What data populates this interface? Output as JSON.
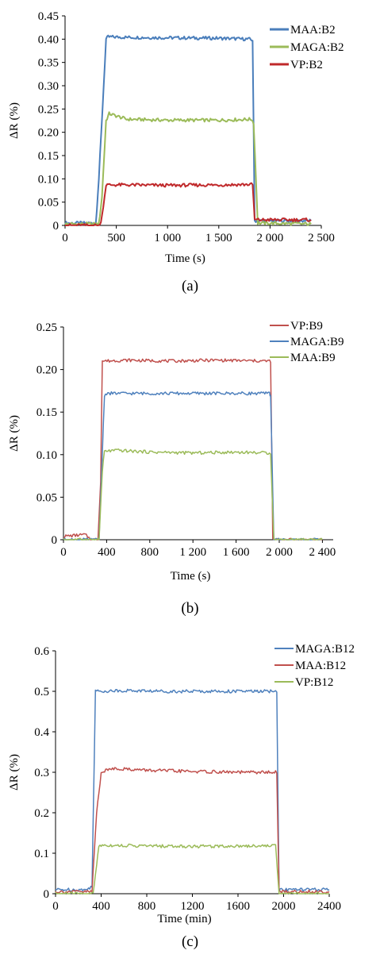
{
  "chart_data": [
    {
      "type": "line",
      "panel_label": "(a)",
      "xlabel": "Time (s)",
      "ylabel": "ΔR (%)",
      "xlim": [
        0,
        2500
      ],
      "ylim": [
        0,
        0.45
      ],
      "xticks": [
        0,
        500,
        1000,
        1500,
        2000,
        2500
      ],
      "xtick_labels": [
        "0",
        "500",
        "1 000",
        "1 500",
        "2 000",
        "2 500"
      ],
      "yticks": [
        0,
        0.05,
        0.1,
        0.15,
        0.2,
        0.25,
        0.3,
        0.35,
        0.4,
        0.45
      ],
      "ytick_labels": [
        "0",
        "0.05",
        "0.10",
        "0.15",
        "0.20",
        "0.25",
        "0.30",
        "0.35",
        "0.40",
        "0.45"
      ],
      "legend_position": "top-right",
      "series": [
        {
          "name": "MAA:B2",
          "color": "#4a7ebb",
          "x": [
            0,
            300,
            330,
            400,
            420,
            600,
            1000,
            1500,
            1800,
            1830,
            1850,
            2400
          ],
          "y": [
            0.005,
            0.005,
            0.1,
            0.4,
            0.405,
            0.404,
            0.403,
            0.402,
            0.4,
            0.398,
            0.01,
            0.01
          ]
        },
        {
          "name": "MAGA:B2",
          "color": "#9bbb59",
          "x": [
            0,
            330,
            360,
            400,
            430,
            600,
            1000,
            1500,
            1820,
            1840,
            1880,
            2400
          ],
          "y": [
            0.003,
            0.003,
            0.06,
            0.225,
            0.24,
            0.228,
            0.226,
            0.226,
            0.228,
            0.22,
            0.005,
            0.003
          ]
        },
        {
          "name": "VP:B2",
          "color": "#c0292b",
          "x": [
            0,
            340,
            360,
            400,
            600,
            1000,
            1500,
            1830,
            1850,
            2400
          ],
          "y": [
            0.0,
            0.0,
            0.02,
            0.087,
            0.087,
            0.086,
            0.087,
            0.088,
            0.012,
            0.012
          ]
        }
      ]
    },
    {
      "type": "line",
      "panel_label": "(b)",
      "xlabel": "Time (s)",
      "ylabel": "ΔR (%)",
      "xlim": [
        0,
        2500
      ],
      "ylim": [
        0,
        0.25
      ],
      "xticks": [
        0,
        400,
        800,
        1200,
        1600,
        2000,
        2400
      ],
      "xtick_labels": [
        "0",
        "400",
        "800",
        "1 200",
        "1 600",
        "2 000",
        "2 400"
      ],
      "yticks": [
        0,
        0.05,
        0.1,
        0.15,
        0.2,
        0.25
      ],
      "ytick_labels": [
        "0",
        "0.05",
        "0.10",
        "0.15",
        "0.20",
        "0.25"
      ],
      "legend_position": "top-right",
      "series": [
        {
          "name": "VP:B9",
          "color": "#c0504d",
          "x": [
            0,
            200,
            260,
            320,
            345,
            360,
            600,
            1000,
            1400,
            1880,
            1920,
            1940,
            2400
          ],
          "y": [
            0.004,
            0.006,
            0.0,
            0.0,
            0.07,
            0.21,
            0.211,
            0.21,
            0.211,
            0.21,
            0.21,
            0.0,
            0.0
          ]
        },
        {
          "name": "MAGA:B9",
          "color": "#4f81bd",
          "x": [
            0,
            330,
            380,
            400,
            800,
            1200,
            1600,
            1910,
            1920,
            1950,
            2400
          ],
          "y": [
            0.0,
            0.0,
            0.17,
            0.172,
            0.172,
            0.172,
            0.172,
            0.172,
            0.17,
            0.0,
            0.0
          ]
        },
        {
          "name": "MAA:B9",
          "color": "#9bbb59",
          "x": [
            0,
            330,
            360,
            380,
            500,
            800,
            1200,
            1600,
            1920,
            1950,
            2400
          ],
          "y": [
            0.0,
            0.0,
            0.08,
            0.104,
            0.105,
            0.103,
            0.102,
            0.103,
            0.102,
            0.0,
            0.0
          ]
        }
      ]
    },
    {
      "type": "line",
      "panel_label": "(c)",
      "xlabel": "Time (min)",
      "ylabel": "ΔR (%)",
      "xlim": [
        0,
        2400
      ],
      "ylim": [
        0,
        0.6
      ],
      "xticks": [
        0,
        400,
        800,
        1200,
        1600,
        2000,
        2400
      ],
      "xtick_labels": [
        "0",
        "400",
        "800",
        "1200",
        "1600",
        "2000",
        "2400"
      ],
      "yticks": [
        0,
        0.1,
        0.2,
        0.3,
        0.4,
        0.5,
        0.6
      ],
      "ytick_labels": [
        "0",
        "0.1",
        "0.2",
        "0.3",
        "0.4",
        "0.5",
        "0.6"
      ],
      "legend_position": "top-right",
      "series": [
        {
          "name": "MAGA:B12",
          "color": "#4f81bd",
          "x": [
            0,
            280,
            320,
            350,
            600,
            1000,
            1400,
            1800,
            1940,
            1960,
            2400
          ],
          "y": [
            0.01,
            0.01,
            0.02,
            0.5,
            0.502,
            0.5,
            0.5,
            0.5,
            0.5,
            0.01,
            0.01
          ]
        },
        {
          "name": "MAA:B12",
          "color": "#c0504d",
          "x": [
            0,
            320,
            360,
            400,
            500,
            800,
            1200,
            1600,
            1940,
            1960,
            2400
          ],
          "y": [
            0.005,
            0.005,
            0.2,
            0.3,
            0.31,
            0.305,
            0.302,
            0.3,
            0.3,
            0.005,
            0.005
          ]
        },
        {
          "name": "VP:B12",
          "color": "#9bbb59",
          "x": [
            0,
            330,
            380,
            400,
            800,
            1200,
            1600,
            1930,
            1960,
            2400
          ],
          "y": [
            0.0,
            0.0,
            0.118,
            0.12,
            0.118,
            0.117,
            0.118,
            0.119,
            0.0,
            0.0
          ]
        }
      ]
    }
  ]
}
